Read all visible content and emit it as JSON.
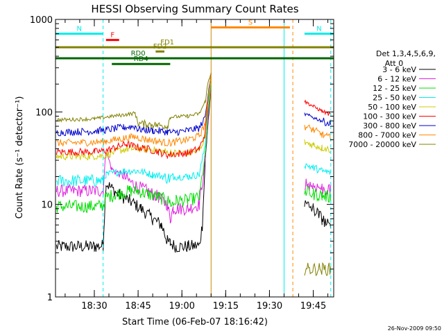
{
  "chart_data": {
    "type": "line",
    "title": "HESSI Observing Summary Count Rates",
    "xlabel": "Start Time (06-Feb-07 18:16:42)",
    "ylabel": "Count Rate (s⁻¹ detector⁻¹)",
    "y_scale": "log",
    "ylim": [
      1,
      1000
    ],
    "xlim": [
      "18:16:42",
      "19:52:00"
    ],
    "x_tick_labels": [
      "18:30",
      "18:45",
      "19:00",
      "19:15",
      "19:30",
      "19:45"
    ],
    "x_ticks": [
      "18:30",
      "18:45",
      "19:00",
      "19:15",
      "19:30",
      "19:45"
    ],
    "y_tick_labels": [
      "1",
      "10",
      "100",
      "1000"
    ],
    "y_ticks": [
      1,
      10,
      100,
      1000
    ],
    "legend": {
      "header_line1": "Det 1,3,4,5,6,9,",
      "header_line2": "Att 0",
      "placement": "right"
    },
    "timestamp": "26-Nov-2009 09:50",
    "series": [
      {
        "name": "3 - 6 keV",
        "color": "#000000",
        "points": [
          [
            "18:17",
            3.5
          ],
          [
            "18:30",
            3.5
          ],
          [
            "18:33",
            3.6
          ],
          [
            "18:34",
            17
          ],
          [
            "18:38",
            13
          ],
          [
            "18:42",
            11
          ],
          [
            "18:46",
            9
          ],
          [
            "18:50",
            7
          ],
          [
            "18:53",
            6
          ],
          [
            "18:54",
            5
          ],
          [
            "18:55",
            4
          ],
          [
            "18:56",
            3.8
          ],
          [
            "18:58",
            3.5
          ],
          [
            "19:02",
            3.5
          ],
          [
            "19:06",
            3.6
          ],
          [
            "19:07",
            6
          ],
          [
            "19:08",
            30
          ],
          [
            "19:09",
            80
          ],
          [
            "19:10",
            170
          ]
        ]
      },
      {
        "name": "6 - 12 keV",
        "color": "#e020e0",
        "points": [
          [
            "18:17",
            14
          ],
          [
            "18:30",
            14
          ],
          [
            "18:33",
            14
          ],
          [
            "18:34",
            38
          ],
          [
            "18:36",
            24
          ],
          [
            "18:40",
            20
          ],
          [
            "18:44",
            16
          ],
          [
            "18:48",
            14
          ],
          [
            "18:52",
            12
          ],
          [
            "18:55",
            10
          ],
          [
            "18:56",
            7
          ],
          [
            "18:57",
            9
          ],
          [
            "18:58",
            9
          ],
          [
            "19:02",
            9
          ],
          [
            "19:06",
            10
          ],
          [
            "19:08",
            30
          ],
          [
            "19:09",
            90
          ],
          [
            "19:10",
            190
          ]
        ]
      },
      {
        "name": "12 - 25 keV",
        "color": "#00dd00",
        "points": [
          [
            "18:17",
            9.5
          ],
          [
            "18:30",
            9.5
          ],
          [
            "18:33",
            9.7
          ],
          [
            "18:34",
            12
          ],
          [
            "18:38",
            13
          ],
          [
            "18:42",
            14
          ],
          [
            "18:45",
            14
          ],
          [
            "18:48",
            13
          ],
          [
            "18:52",
            12
          ],
          [
            "18:55",
            11
          ],
          [
            "18:57",
            10
          ],
          [
            "18:58",
            11
          ],
          [
            "19:02",
            11
          ],
          [
            "19:06",
            12
          ],
          [
            "19:08",
            35
          ],
          [
            "19:09",
            100
          ],
          [
            "19:10",
            210
          ]
        ]
      },
      {
        "name": "25 - 50 keV",
        "color": "#00eeee",
        "points": [
          [
            "18:17",
            18
          ],
          [
            "18:30",
            18
          ],
          [
            "18:33",
            18
          ],
          [
            "18:34",
            21
          ],
          [
            "18:40",
            23
          ],
          [
            "18:45",
            23
          ],
          [
            "18:50",
            21
          ],
          [
            "18:54",
            20
          ],
          [
            "18:56",
            19
          ],
          [
            "18:57",
            20
          ],
          [
            "19:02",
            20
          ],
          [
            "19:06",
            21
          ],
          [
            "19:08",
            45
          ],
          [
            "19:09",
            120
          ],
          [
            "19:10",
            230
          ]
        ]
      },
      {
        "name": "50 - 100 keV",
        "color": "#cccc00",
        "points": [
          [
            "18:17",
            33
          ],
          [
            "18:30",
            33
          ],
          [
            "18:34",
            34
          ],
          [
            "18:38",
            38
          ],
          [
            "18:42",
            40
          ],
          [
            "18:45",
            40
          ],
          [
            "18:50",
            39
          ],
          [
            "18:54",
            37
          ],
          [
            "18:57",
            36
          ],
          [
            "19:02",
            36
          ],
          [
            "19:06",
            38
          ],
          [
            "19:08",
            55
          ],
          [
            "19:09",
            130
          ],
          [
            "19:10",
            240
          ]
        ]
      },
      {
        "name": "100 - 300 keV",
        "color": "#ff0000",
        "points": [
          [
            "18:17",
            37
          ],
          [
            "18:30",
            37
          ],
          [
            "18:34",
            38
          ],
          [
            "18:38",
            42
          ],
          [
            "18:41",
            45
          ],
          [
            "18:44",
            42
          ],
          [
            "18:48",
            40
          ],
          [
            "18:52",
            37
          ],
          [
            "18:55",
            34
          ],
          [
            "18:57",
            35
          ],
          [
            "19:02",
            36
          ],
          [
            "19:06",
            40
          ],
          [
            "19:08",
            60
          ],
          [
            "19:09",
            140
          ],
          [
            "19:10",
            250
          ]
        ]
      },
      {
        "name": "300 - 800 keV",
        "color": "#0000cc",
        "points": [
          [
            "18:17",
            60
          ],
          [
            "18:30",
            62
          ],
          [
            "18:34",
            64
          ],
          [
            "18:40",
            68
          ],
          [
            "18:44",
            70
          ],
          [
            "18:45",
            65
          ],
          [
            "18:50",
            63
          ],
          [
            "18:55",
            61
          ],
          [
            "18:57",
            60
          ],
          [
            "19:02",
            63
          ],
          [
            "19:06",
            67
          ],
          [
            "19:08",
            90
          ],
          [
            "19:09",
            160
          ],
          [
            "19:10",
            260
          ]
        ]
      },
      {
        "name": "800 - 7000 keV",
        "color": "#ff8800",
        "points": [
          [
            "18:17",
            46
          ],
          [
            "18:30",
            47
          ],
          [
            "18:34",
            48
          ],
          [
            "18:40",
            52
          ],
          [
            "18:44",
            54
          ],
          [
            "18:47",
            51
          ],
          [
            "18:52",
            48
          ],
          [
            "18:55",
            46
          ],
          [
            "18:57",
            47
          ],
          [
            "19:02",
            50
          ],
          [
            "19:06",
            55
          ],
          [
            "19:08",
            75
          ],
          [
            "19:09",
            150
          ],
          [
            "19:10",
            255
          ]
        ]
      },
      {
        "name": "7000 - 20000 keV",
        "color": "#808000",
        "points": [
          [
            "18:17",
            82
          ],
          [
            "18:30",
            84
          ],
          [
            "18:34",
            88
          ],
          [
            "18:40",
            93
          ],
          [
            "18:44",
            97
          ],
          [
            "18:45",
            75
          ],
          [
            "18:50",
            73
          ],
          [
            "18:55",
            70
          ],
          [
            "18:56",
            88
          ],
          [
            "19:02",
            90
          ],
          [
            "19:06",
            96
          ],
          [
            "19:08",
            130
          ],
          [
            "19:09",
            210
          ],
          [
            "19:10",
            270
          ]
        ]
      }
    ],
    "series_after_gap": [
      {
        "name": "3 - 6 keV",
        "color": "#000000",
        "points": [
          [
            "19:42",
            10
          ],
          [
            "19:45",
            9
          ],
          [
            "19:48",
            7
          ],
          [
            "19:51",
            5.5
          ]
        ]
      },
      {
        "name": "6 - 12 keV",
        "color": "#e020e0",
        "points": [
          [
            "19:42",
            17
          ],
          [
            "19:45",
            16
          ],
          [
            "19:48",
            15
          ],
          [
            "19:51",
            14
          ]
        ]
      },
      {
        "name": "12 - 25 keV",
        "color": "#00dd00",
        "points": [
          [
            "19:42",
            14
          ],
          [
            "19:45",
            13
          ],
          [
            "19:48",
            12.5
          ],
          [
            "19:51",
            12
          ]
        ]
      },
      {
        "name": "25 - 50 keV",
        "color": "#00eeee",
        "points": [
          [
            "19:42",
            27
          ],
          [
            "19:45",
            25
          ],
          [
            "19:48",
            23
          ],
          [
            "19:51",
            22
          ]
        ]
      },
      {
        "name": "50 - 100 keV",
        "color": "#cccc00",
        "points": [
          [
            "19:42",
            47
          ],
          [
            "19:45",
            44
          ],
          [
            "19:48",
            41
          ],
          [
            "19:51",
            39
          ]
        ]
      },
      {
        "name": "100 - 300 keV",
        "color": "#ff0000",
        "points": [
          [
            "19:42",
            130
          ],
          [
            "19:45",
            115
          ],
          [
            "19:48",
            102
          ],
          [
            "19:51",
            93
          ]
        ]
      },
      {
        "name": "300 - 800 keV",
        "color": "#0000cc",
        "points": [
          [
            "19:42",
            95
          ],
          [
            "19:45",
            87
          ],
          [
            "19:48",
            80
          ],
          [
            "19:51",
            74
          ]
        ]
      },
      {
        "name": "800 - 7000 keV",
        "color": "#ff8800",
        "points": [
          [
            "19:42",
            70
          ],
          [
            "19:45",
            64
          ],
          [
            "19:48",
            57
          ],
          [
            "19:51",
            52
          ]
        ]
      },
      {
        "name": "7000 - 20000 keV",
        "color": "#808000",
        "points": [
          [
            "19:42",
            2.0
          ],
          [
            "19:51",
            2.0
          ]
        ]
      }
    ],
    "flag_bars": [
      {
        "label": "N",
        "color": "#00eeee",
        "start": "18:16:42",
        "end": "18:33:00",
        "level": 700
      },
      {
        "label": "N",
        "color": "#00eeee",
        "start": "19:42:00",
        "end": "19:52:00",
        "level": 700
      },
      {
        "label": "F",
        "color": "#ff0000",
        "start": "18:34:00",
        "end": "18:38:30",
        "level": 600
      },
      {
        "label": "S",
        "color": "#ff8800",
        "start": "19:10:00",
        "end": "19:37:00",
        "level": 820
      },
      {
        "label": "FD1",
        "color": "#808000",
        "start": "18:16:42",
        "end": "19:52:00",
        "level": 500
      },
      {
        "label": "FD2",
        "color": "#808000",
        "start": "18:51:00",
        "end": "18:54:00",
        "level": 450
      },
      {
        "label": "RD0",
        "color": "#006600",
        "start": "18:16:42",
        "end": "19:52:00",
        "level": 380
      },
      {
        "label": "RD4",
        "color": "#006600",
        "start": "18:36:00",
        "end": "18:56:00",
        "level": 330
      }
    ],
    "vertical_lines": [
      {
        "time": "18:16:42",
        "color": "#00eeee",
        "style": "solid"
      },
      {
        "time": "18:33:00",
        "color": "#00eeee",
        "style": "dashed"
      },
      {
        "time": "19:10:00",
        "color": "#cc8800",
        "style": "solid"
      },
      {
        "time": "19:35:00",
        "color": "#00eeee",
        "style": "solid"
      },
      {
        "time": "19:38:00",
        "color": "#ff8800",
        "style": "dashed"
      },
      {
        "time": "19:51:00",
        "color": "#00eeee",
        "style": "dashed"
      }
    ],
    "grid": false
  }
}
